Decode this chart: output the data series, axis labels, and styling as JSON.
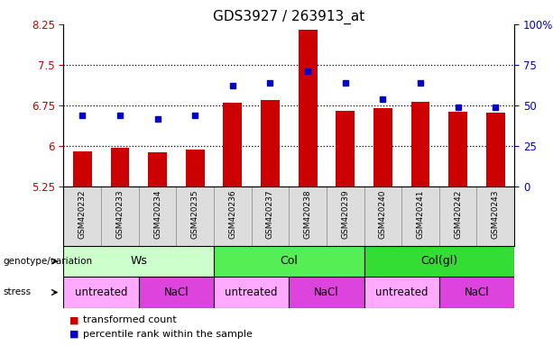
{
  "title": "GDS3927 / 263913_at",
  "samples": [
    "GSM420232",
    "GSM420233",
    "GSM420234",
    "GSM420235",
    "GSM420236",
    "GSM420237",
    "GSM420238",
    "GSM420239",
    "GSM420240",
    "GSM420241",
    "GSM420242",
    "GSM420243"
  ],
  "bar_values": [
    5.9,
    5.97,
    5.88,
    5.93,
    6.8,
    6.85,
    8.15,
    6.65,
    6.7,
    6.82,
    6.63,
    6.62
  ],
  "bar_bottom": 5.25,
  "dot_values": [
    44,
    44,
    42,
    44,
    62,
    64,
    71,
    64,
    54,
    64,
    49,
    49
  ],
  "ylim_left": [
    5.25,
    8.25
  ],
  "ylim_right": [
    0,
    100
  ],
  "yticks_left": [
    5.25,
    6.0,
    6.75,
    7.5,
    8.25
  ],
  "ytick_labels_left": [
    "5.25",
    "6",
    "6.75",
    "7.5",
    "8.25"
  ],
  "yticks_right": [
    0,
    25,
    50,
    75,
    100
  ],
  "ytick_labels_right": [
    "0",
    "25",
    "50",
    "75",
    "100%"
  ],
  "hlines": [
    6.0,
    6.75,
    7.5
  ],
  "bar_color": "#cc0000",
  "dot_color": "#0000cc",
  "genotype_groups": [
    {
      "label": "Ws",
      "start": 0,
      "end": 4,
      "color": "#ccffcc"
    },
    {
      "label": "Col",
      "start": 4,
      "end": 8,
      "color": "#55ee55"
    },
    {
      "label": "Col(gl)",
      "start": 8,
      "end": 12,
      "color": "#33dd33"
    }
  ],
  "stress_groups": [
    {
      "label": "untreated",
      "start": 0,
      "end": 2,
      "color": "#ffaaff"
    },
    {
      "label": "NaCl",
      "start": 2,
      "end": 4,
      "color": "#dd44dd"
    },
    {
      "label": "untreated",
      "start": 4,
      "end": 6,
      "color": "#ffaaff"
    },
    {
      "label": "NaCl",
      "start": 6,
      "end": 8,
      "color": "#dd44dd"
    },
    {
      "label": "untreated",
      "start": 8,
      "end": 10,
      "color": "#ffaaff"
    },
    {
      "label": "NaCl",
      "start": 10,
      "end": 12,
      "color": "#dd44dd"
    }
  ],
  "legend_bar_label": "transformed count",
  "legend_dot_label": "percentile rank within the sample",
  "genotype_row_label": "genotype/variation",
  "stress_row_label": "stress",
  "bg_color": "#ffffff",
  "tick_label_color_left": "#cc0000",
  "tick_label_color_right": "#0000cc",
  "xtick_bg_color": "#dddddd"
}
